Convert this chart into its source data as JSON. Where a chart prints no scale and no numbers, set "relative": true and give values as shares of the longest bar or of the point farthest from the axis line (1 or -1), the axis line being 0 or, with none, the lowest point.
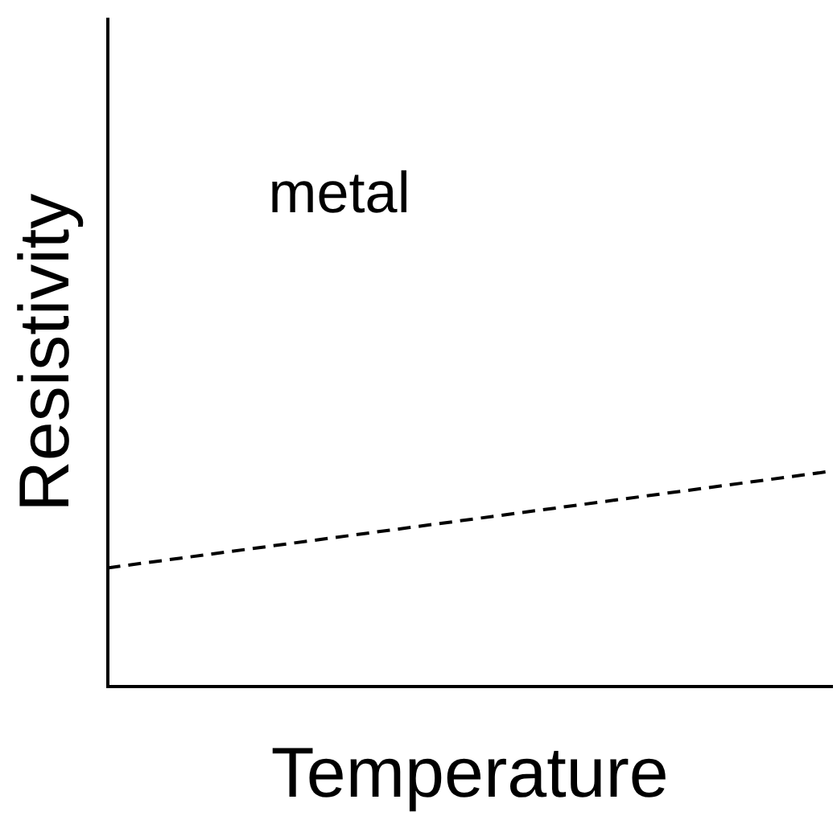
{
  "chart_data": {
    "type": "line",
    "xlabel": "Temperature",
    "ylabel": "Resistivity",
    "relative": true,
    "categories": [
      null,
      null
    ],
    "series": [
      {
        "color": "#000000",
        "values": [
          0.55,
          1
        ]
      }
    ],
    "line_style": "dashed",
    "marker": "none",
    "grid": false,
    "legend": false,
    "annotations": [
      "metal"
    ]
  }
}
